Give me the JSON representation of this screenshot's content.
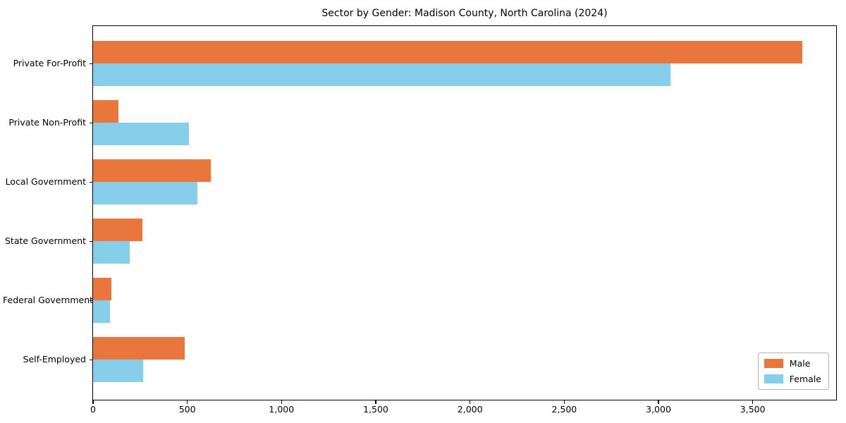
{
  "chart_data": {
    "type": "bar",
    "orientation": "horizontal",
    "title": "Sector by Gender: Madison County, North Carolina (2024)",
    "categories": [
      "Private For-Profit",
      "Private Non-Profit",
      "Local Government",
      "State Government",
      "Federal Government",
      "Self-Employed"
    ],
    "series": [
      {
        "name": "Male",
        "color": "#e8763d",
        "values": [
          3762,
          136,
          626,
          262,
          98,
          486
        ]
      },
      {
        "name": "Female",
        "color": "#87ceeb",
        "values": [
          3062,
          508,
          554,
          196,
          90,
          264
        ]
      }
    ],
    "xlabel": "",
    "ylabel": "",
    "xlim": [
      0,
      3950
    ],
    "xticks": [
      0,
      500,
      1000,
      1500,
      2000,
      2500,
      3000,
      3500
    ],
    "xtick_labels": [
      "0",
      "500",
      "1,000",
      "1,500",
      "2,000",
      "2,500",
      "3,000",
      "3,500"
    ],
    "grid": false,
    "legend_position": "lower right"
  }
}
